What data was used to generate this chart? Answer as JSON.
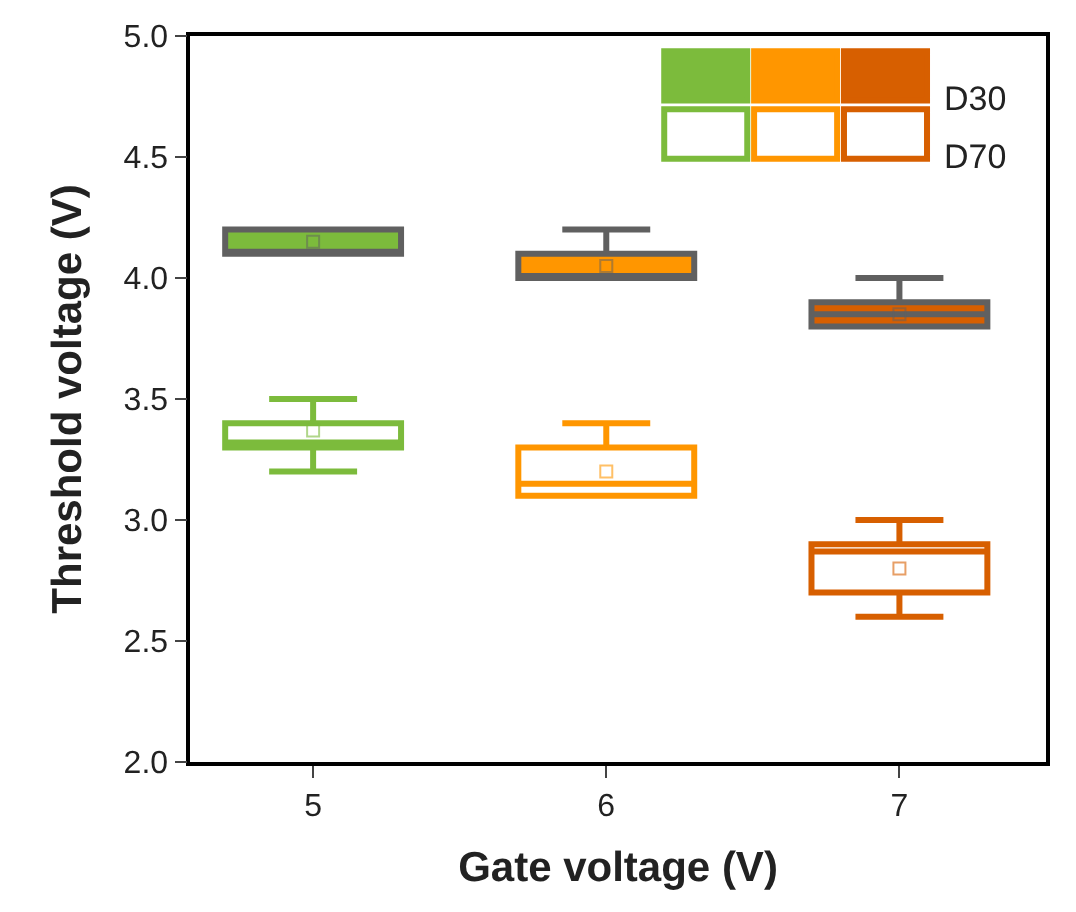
{
  "chart_data": {
    "type": "box",
    "xlabel": "Gate voltage (V)",
    "ylabel": "Threshold voltage (V)",
    "categories": [
      "5",
      "6",
      "7"
    ],
    "ylim": [
      2.0,
      5.0
    ],
    "yticks": [
      {
        "value": 2,
        "label": "2.0"
      },
      2.5,
      {
        "value": 3,
        "label": "3.0"
      },
      3.5,
      {
        "value": 4,
        "label": "4.0"
      },
      4.5,
      {
        "value": 5,
        "label": "5.0"
      }
    ],
    "legend": "top right",
    "series": [
      {
        "name": "D30",
        "colors": [
          "#7cbb3c",
          "#ff9600",
          "#d75f00"
        ],
        "boxes": [
          {
            "low": 4.1,
            "q1": 4.1,
            "median": 4.1,
            "q3": 4.2,
            "high": 4.2,
            "mean": 4.15
          },
          {
            "low": 4.0,
            "q1": 4.0,
            "median": 4.0,
            "q3": 4.1,
            "high": 4.2,
            "mean": 4.05
          },
          {
            "low": 3.8,
            "q1": 3.8,
            "median": 3.85,
            "q3": 3.9,
            "high": 4.0,
            "mean": 3.85
          }
        ]
      },
      {
        "name": "D70",
        "colors": [
          "#7cbb3c",
          "#ff9600",
          "#d75f00"
        ],
        "boxes": [
          {
            "low": 3.2,
            "q1": 3.3,
            "median": 3.32,
            "q3": 3.4,
            "high": 3.5,
            "mean": 3.37
          },
          {
            "low": 3.1,
            "q1": 3.1,
            "median": 3.15,
            "q3": 3.3,
            "high": 3.4,
            "mean": 3.2
          },
          {
            "low": 2.6,
            "q1": 2.7,
            "median": 2.87,
            "q3": 2.9,
            "high": 3.0,
            "mean": 2.8
          }
        ]
      }
    ]
  }
}
